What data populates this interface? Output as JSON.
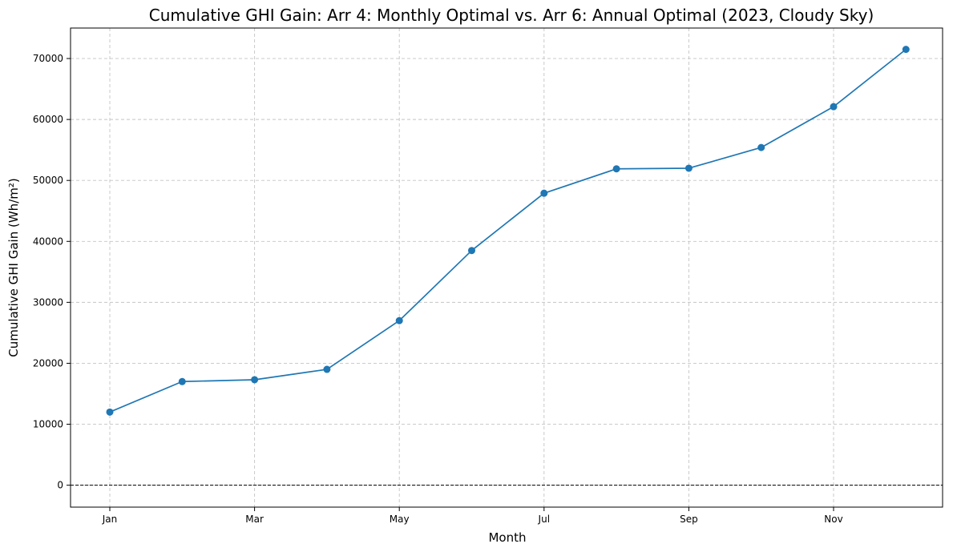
{
  "chart_data": {
    "type": "line",
    "title": "Cumulative GHI Gain: Arr 4: Monthly Optimal vs. Arr 6: Annual Optimal (2023, Cloudy Sky)",
    "xlabel": "Month",
    "ylabel": "Cumulative GHI Gain (Wh/m²)",
    "x": [
      "Jan",
      "Feb",
      "Mar",
      "Apr",
      "May",
      "Jun",
      "Jul",
      "Aug",
      "Sep",
      "Oct",
      "Nov",
      "Dec"
    ],
    "x_tick_labels": [
      "Jan",
      "Mar",
      "May",
      "Jul",
      "Sep",
      "Nov"
    ],
    "y_ticks": [
      0,
      10000,
      20000,
      30000,
      40000,
      50000,
      60000,
      70000
    ],
    "y_tick_labels": [
      "0",
      "10000",
      "20000",
      "30000",
      "40000",
      "50000",
      "60000",
      "70000"
    ],
    "ylim": [
      -3600,
      75000
    ],
    "series": [
      {
        "color": "#1f77b4",
        "marker": "circle",
        "values": [
          12000,
          17000,
          17300,
          19000,
          27000,
          38500,
          47900,
          51900,
          52000,
          55400,
          62100,
          71500
        ]
      }
    ],
    "reference_line": {
      "y": 0,
      "style": "dashed",
      "color": "#000000"
    },
    "grid": true,
    "grid_style": "dashed",
    "legend": "none"
  }
}
